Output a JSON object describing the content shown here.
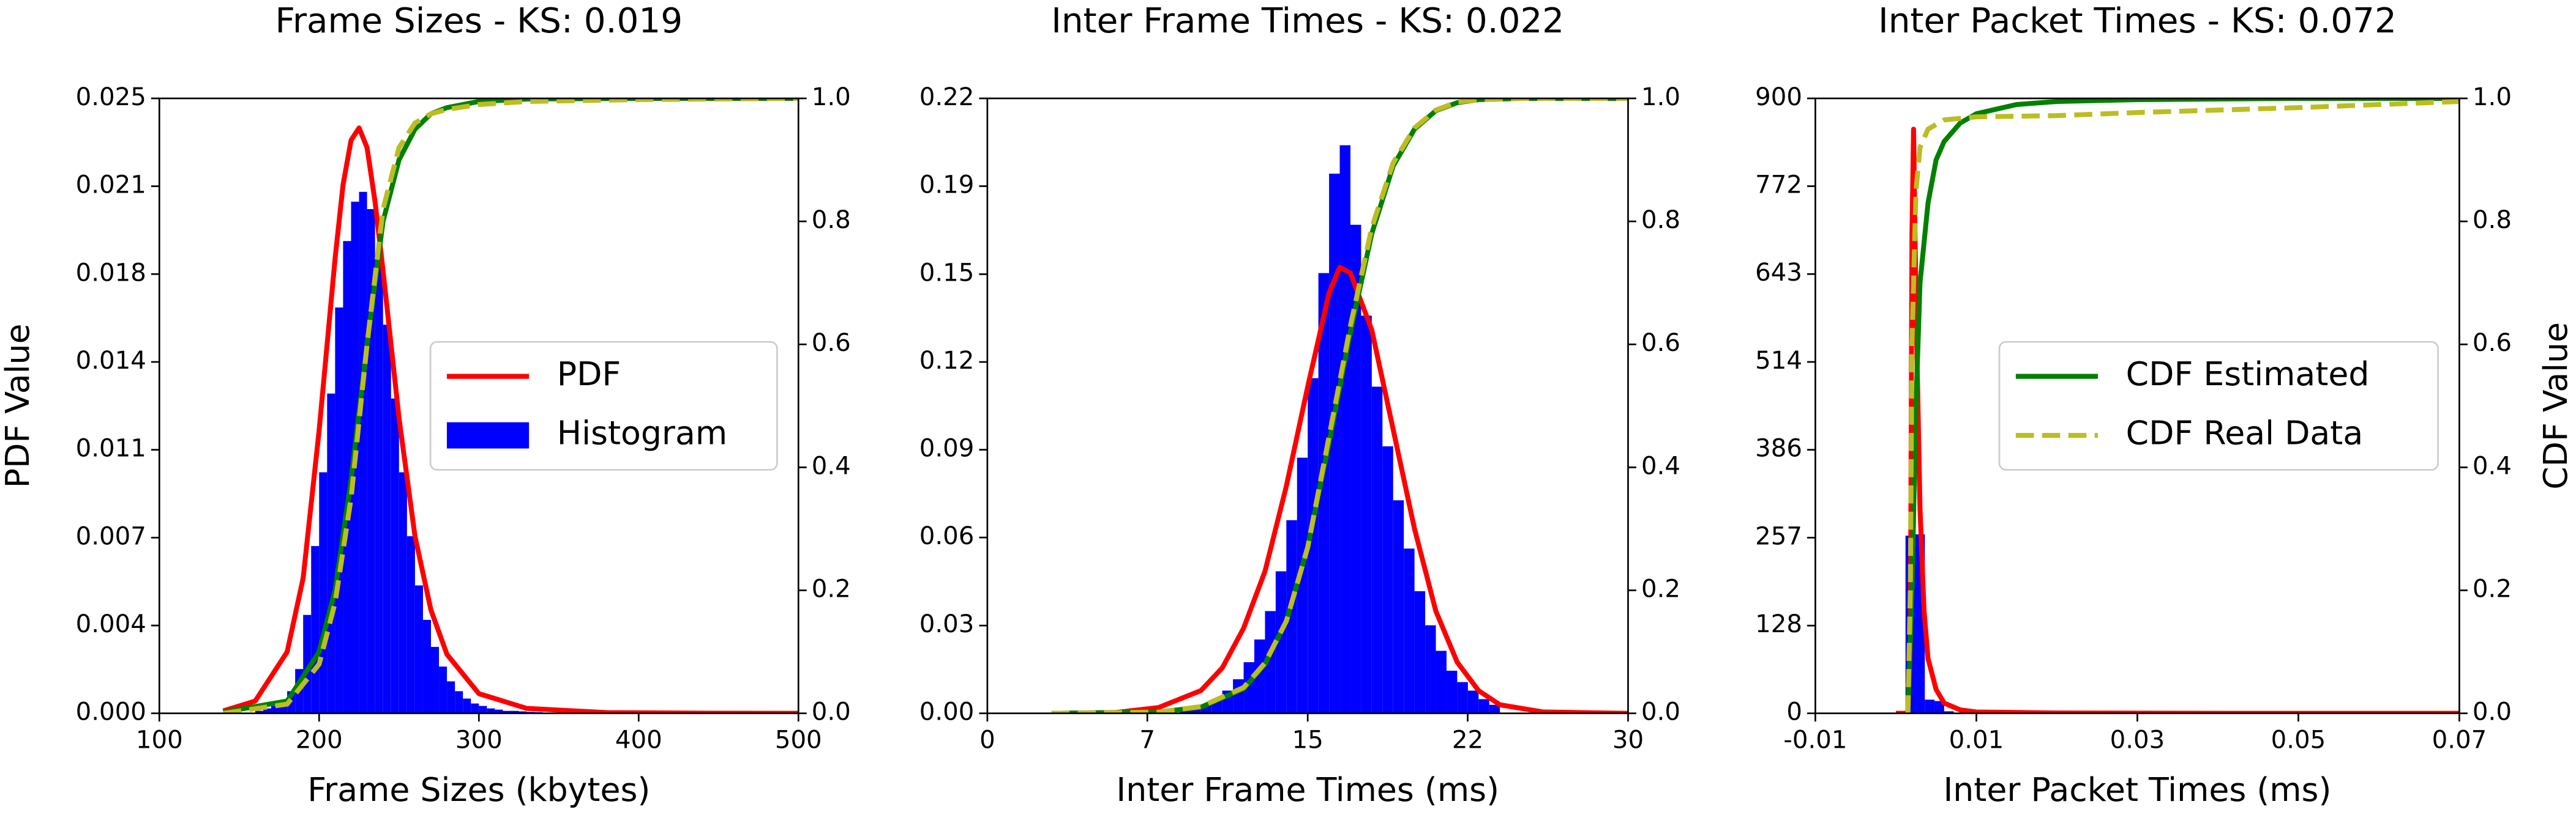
{
  "chart_data": [
    {
      "type": "histogram",
      "title": "Frame Sizes - KS: 0.019",
      "xlabel": "Frame Sizes (kbytes)",
      "ylabel": "PDF Value",
      "xlim": [
        100,
        500
      ],
      "xticks": [
        100,
        200,
        300,
        400,
        500
      ],
      "ylim": [
        0,
        0.025
      ],
      "yticks": [
        {
          "value": 0,
          "label": "0.000"
        },
        {
          "value": 0.003571,
          "label": "0.004"
        },
        {
          "value": 0.007143,
          "label": "0.007"
        },
        {
          "value": 0.010714,
          "label": "0.011"
        },
        {
          "value": 0.014286,
          "label": "0.014"
        },
        {
          "value": 0.017857,
          "label": "0.018"
        },
        {
          "value": 0.021429,
          "label": "0.021"
        },
        0.025
      ],
      "y2lim": [
        0,
        1
      ],
      "y2ticks": [
        {
          "value": 0,
          "label": "0.0"
        },
        0.2,
        0.4,
        0.6,
        0.8,
        {
          "value": 1,
          "label": "1.0"
        }
      ],
      "legend": "center right",
      "histogram": {
        "name": "Histogram",
        "color": "#0000ff",
        "bins": [
          160,
          165,
          170,
          175,
          180,
          185,
          190,
          195,
          200,
          205,
          210,
          215,
          220,
          225,
          230,
          235,
          240,
          245,
          250,
          255,
          260,
          265,
          270,
          275,
          280,
          285,
          290,
          295,
          300,
          305,
          310,
          315,
          320,
          325,
          330,
          335,
          340
        ],
        "values": [
          0.0001,
          0.0002,
          0.0003,
          0.0005,
          0.0009,
          0.0018,
          0.004,
          0.0068,
          0.0098,
          0.013,
          0.0165,
          0.0192,
          0.0208,
          0.0212,
          0.0205,
          0.0185,
          0.0158,
          0.0128,
          0.0098,
          0.0072,
          0.0052,
          0.0038,
          0.0027,
          0.0019,
          0.0013,
          0.0009,
          0.0006,
          0.0004,
          0.0003,
          0.0002,
          0.00015,
          0.0001,
          0.0001,
          8e-05,
          6e-05,
          5e-05
        ]
      },
      "series": [
        {
          "name": "PDF",
          "color": "#ff0000",
          "x": [
            140,
            160,
            180,
            190,
            200,
            210,
            215,
            220,
            225,
            230,
            235,
            240,
            250,
            260,
            270,
            280,
            300,
            330,
            380,
            450,
            500
          ],
          "values": [
            0.0001,
            0.0005,
            0.0025,
            0.0055,
            0.0115,
            0.0185,
            0.0215,
            0.0233,
            0.0238,
            0.023,
            0.0208,
            0.018,
            0.012,
            0.0072,
            0.0042,
            0.0024,
            0.0008,
            0.0002,
            3e-05,
            5e-06,
            1e-06
          ]
        },
        {
          "color": "#008000",
          "axis": "y2",
          "x": [
            140,
            180,
            200,
            210,
            220,
            230,
            240,
            250,
            260,
            270,
            280,
            300,
            330,
            400,
            500
          ],
          "values": [
            0.002,
            0.02,
            0.1,
            0.2,
            0.38,
            0.6,
            0.8,
            0.9,
            0.95,
            0.975,
            0.985,
            0.995,
            0.999,
            1,
            1
          ]
        },
        {
          "color": "#bcbd22",
          "dashed": true,
          "axis": "y2",
          "x": [
            140,
            180,
            200,
            210,
            220,
            230,
            240,
            250,
            260,
            270,
            280,
            300,
            330,
            400,
            500
          ],
          "values": [
            0,
            0.015,
            0.08,
            0.18,
            0.35,
            0.6,
            0.82,
            0.92,
            0.96,
            0.975,
            0.982,
            0.99,
            0.995,
            0.998,
            1
          ]
        }
      ]
    },
    {
      "type": "histogram",
      "title": "Inter Frame Times - KS: 0.022",
      "xlabel": "Inter Frame Times (ms)",
      "xlim": [
        0,
        30
      ],
      "xticks": [
        0,
        {
          "value": 7.49,
          "label": "7"
        },
        15,
        {
          "value": 22.49,
          "label": "22"
        },
        30
      ],
      "ylim": [
        0,
        0.2165
      ],
      "yticks": [
        {
          "value": 0,
          "label": "0.00"
        },
        {
          "value": 0.0309,
          "label": "0.03"
        },
        {
          "value": 0.0619,
          "label": "0.06"
        },
        {
          "value": 0.0928,
          "label": "0.09"
        },
        {
          "value": 0.1237,
          "label": "0.12"
        },
        {
          "value": 0.1546,
          "label": "0.15"
        },
        {
          "value": 0.1856,
          "label": "0.19"
        },
        {
          "value": 0.2165,
          "label": "0.22"
        }
      ],
      "y2lim": [
        0,
        1
      ],
      "y2ticks": [
        {
          "value": 0,
          "label": "0.0"
        },
        0.2,
        0.4,
        0.6,
        0.8,
        {
          "value": 1,
          "label": "1.0"
        }
      ],
      "histogram": {
        "color": "#0000ff",
        "bins": [
          9,
          9.5,
          10,
          10.5,
          11,
          11.5,
          12,
          12.5,
          13,
          13.5,
          14,
          14.5,
          15,
          15.5,
          16,
          16.5,
          17,
          17.5,
          18,
          18.5,
          19,
          19.5,
          20,
          20.5,
          21,
          21.5,
          22,
          22.5,
          23,
          23.5,
          24
        ],
        "values": [
          0.001,
          0.002,
          0.003,
          0.005,
          0.008,
          0.012,
          0.018,
          0.026,
          0.036,
          0.05,
          0.068,
          0.09,
          0.118,
          0.155,
          0.19,
          0.2,
          0.172,
          0.14,
          0.115,
          0.094,
          0.075,
          0.058,
          0.043,
          0.031,
          0.022,
          0.015,
          0.011,
          0.008,
          0.005,
          0.003
        ]
      },
      "series": [
        {
          "color": "#ff0000",
          "x": [
            3,
            6,
            8,
            10,
            11,
            12,
            13,
            14,
            15,
            16,
            16.5,
            17,
            18,
            19,
            20,
            21,
            22,
            23,
            24,
            26,
            30
          ],
          "values": [
            0,
            0.0003,
            0.002,
            0.008,
            0.016,
            0.03,
            0.05,
            0.08,
            0.115,
            0.148,
            0.157,
            0.155,
            0.135,
            0.1,
            0.065,
            0.036,
            0.018,
            0.008,
            0.003,
            0.0005,
            0
          ]
        },
        {
          "color": "#008000",
          "axis": "y2",
          "x": [
            3,
            8,
            10,
            12,
            13,
            14,
            15,
            16,
            17,
            18,
            19,
            20,
            21,
            22,
            23,
            25,
            30
          ],
          "values": [
            0,
            0.002,
            0.01,
            0.04,
            0.08,
            0.15,
            0.27,
            0.44,
            0.62,
            0.78,
            0.89,
            0.95,
            0.98,
            0.993,
            0.998,
            1,
            1
          ]
        },
        {
          "color": "#bcbd22",
          "dashed": true,
          "axis": "y2",
          "x": [
            3,
            8,
            10,
            12,
            13,
            14,
            15,
            16,
            17,
            18,
            19,
            20,
            21,
            22,
            23,
            25,
            30
          ],
          "values": [
            0,
            0.002,
            0.011,
            0.042,
            0.082,
            0.15,
            0.27,
            0.45,
            0.63,
            0.79,
            0.895,
            0.952,
            0.981,
            0.994,
            0.998,
            1,
            1
          ]
        }
      ]
    },
    {
      "type": "histogram",
      "title": "Inter Packet Times - KS: 0.072",
      "xlabel": "Inter Packet Times (ms)",
      "y2label": "CDF Value",
      "xlim": [
        -0.01,
        0.07
      ],
      "xticks": [
        -0.01,
        0.01,
        0.03,
        0.05,
        0.07
      ],
      "ylim": [
        0,
        900
      ],
      "yticks": [
        0,
        {
          "value": 128.4,
          "label": "128"
        },
        {
          "value": 257.1,
          "label": "257"
        },
        {
          "value": 385.7,
          "label": "386"
        },
        {
          "value": 514.3,
          "label": "514"
        },
        {
          "value": 642.9,
          "label": "643"
        },
        {
          "value": 771.5,
          "label": "772"
        },
        900
      ],
      "y2lim": [
        0,
        1
      ],
      "y2ticks": [
        {
          "value": 0,
          "label": "0.0"
        },
        0.2,
        0.4,
        0.6,
        0.8,
        {
          "value": 1,
          "label": "1.0"
        }
      ],
      "legend": "center right",
      "histogram": {
        "color": "#0000ff",
        "bins": [
          0.0012,
          0.0024,
          0.0036,
          0.0048,
          0.006,
          0.0072,
          0.0084
        ],
        "values": [
          260,
          262,
          20,
          18,
          3,
          1
        ]
      },
      "series": [
        {
          "color": "#ff0000",
          "x": [
            0,
            0.0015,
            0.0018,
            0.002,
            0.0022,
            0.0025,
            0.003,
            0.0035,
            0.004,
            0.005,
            0.006,
            0.008,
            0.01,
            0.02,
            0.04,
            0.07
          ],
          "values": [
            0,
            0,
            100,
            700,
            855,
            600,
            300,
            150,
            80,
            35,
            15,
            5,
            2,
            0.5,
            0.1,
            0
          ]
        },
        {
          "name": "CDF Estimated",
          "color": "#008000",
          "axis": "y2",
          "x": [
            0.0015,
            0.002,
            0.0025,
            0.003,
            0.004,
            0.005,
            0.006,
            0.008,
            0.01,
            0.015,
            0.02,
            0.03,
            0.05,
            0.07
          ],
          "values": [
            0,
            0.2,
            0.5,
            0.7,
            0.83,
            0.9,
            0.93,
            0.96,
            0.975,
            0.99,
            0.995,
            0.998,
            1,
            1
          ]
        },
        {
          "name": "CDF Real Data",
          "color": "#bcbd22",
          "dashed": true,
          "axis": "y2",
          "x": [
            0.0015,
            0.0018,
            0.002,
            0.0025,
            0.003,
            0.004,
            0.006,
            0.01,
            0.02,
            0.03,
            0.05,
            0.07
          ],
          "values": [
            0,
            0.2,
            0.6,
            0.85,
            0.92,
            0.95,
            0.965,
            0.97,
            0.972,
            0.977,
            0.985,
            0.995
          ]
        }
      ]
    }
  ]
}
